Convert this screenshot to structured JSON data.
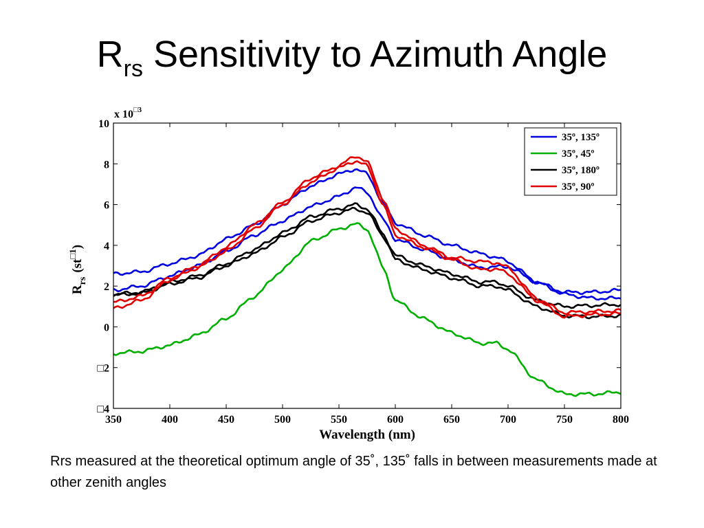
{
  "slide": {
    "title_main": "R",
    "title_sub": "rs",
    "title_rest": " Sensitivity to Azimuth Angle",
    "caption": "Rrs measured at the theoretical optimum angle of 35˚, 135˚ falls in between measurements made at other zenith angles"
  },
  "chart_data": {
    "type": "line",
    "xlabel": "Wavelength (nm)",
    "ylabel_main": "R",
    "ylabel_sub": "rs",
    "ylabel_unit_open": "(st",
    "ylabel_unit_exp": "□1",
    "ylabel_unit_close": ")",
    "multiplier": "x 10",
    "multiplier_exp": "□3",
    "xlim": [
      350,
      800
    ],
    "ylim": [
      -4,
      10
    ],
    "xticks": [
      350,
      400,
      450,
      500,
      550,
      600,
      650,
      700,
      750,
      800
    ],
    "yticks": [
      -4,
      -2,
      0,
      2,
      4,
      6,
      8,
      10
    ],
    "ytick_labels": [
      "□4",
      "□2",
      "0",
      "2",
      "4",
      "6",
      "8",
      "10"
    ],
    "legend_position": "top-right",
    "grid": false,
    "x": [
      350,
      375,
      400,
      425,
      450,
      475,
      500,
      525,
      550,
      565,
      575,
      590,
      600,
      625,
      650,
      675,
      690,
      700,
      725,
      750,
      775,
      800
    ],
    "series": [
      {
        "name": "35º, 135º",
        "color": "#0000e0",
        "values": [
          2.6,
          2.7,
          3.1,
          3.5,
          4.3,
          5.0,
          6.0,
          6.9,
          7.5,
          7.75,
          7.5,
          6.0,
          5.1,
          4.5,
          4.0,
          3.6,
          3.4,
          3.2,
          2.2,
          1.7,
          1.7,
          1.8
        ]
      },
      {
        "name": "35º, 135º",
        "color": "#0000e0",
        "values": [
          1.8,
          2.0,
          2.5,
          3.0,
          3.7,
          4.5,
          5.2,
          5.9,
          6.4,
          6.85,
          6.6,
          5.2,
          4.3,
          3.8,
          3.3,
          2.9,
          2.95,
          2.95,
          2.2,
          1.6,
          1.4,
          1.4
        ]
      },
      {
        "name": "35º, 45º",
        "color": "#00b000",
        "values": [
          -1.3,
          -1.2,
          -0.9,
          -0.4,
          0.4,
          1.5,
          2.8,
          4.2,
          4.8,
          5.05,
          4.8,
          2.8,
          1.3,
          0.4,
          -0.3,
          -0.8,
          -0.8,
          -1.1,
          -2.6,
          -3.3,
          -3.3,
          -3.2
        ]
      },
      {
        "name": "35º, 180º",
        "color": "#000000",
        "values": [
          1.6,
          1.7,
          2.2,
          2.5,
          3.1,
          3.8,
          4.6,
          5.4,
          5.8,
          6.0,
          5.8,
          4.5,
          3.5,
          3.0,
          2.6,
          2.2,
          2.2,
          2.0,
          1.3,
          1.0,
          1.05,
          1.1
        ]
      },
      {
        "name": "35º, 180º",
        "color": "#000000",
        "values": [
          1.55,
          1.65,
          2.1,
          2.4,
          3.0,
          3.6,
          4.4,
          5.2,
          5.6,
          5.8,
          5.6,
          4.4,
          3.3,
          2.8,
          2.4,
          2.0,
          2.0,
          1.8,
          1.0,
          0.55,
          0.5,
          0.55
        ]
      },
      {
        "name": "35º, 90º",
        "color": "#e00000",
        "values": [
          1.2,
          1.5,
          2.4,
          3.0,
          3.9,
          5.0,
          6.1,
          7.3,
          7.9,
          8.4,
          8.1,
          6.2,
          4.8,
          4.0,
          3.4,
          3.2,
          3.15,
          2.9,
          1.4,
          0.7,
          0.75,
          0.8
        ]
      },
      {
        "name": "35º, 90º",
        "color": "#e00000",
        "values": [
          0.9,
          1.3,
          2.3,
          2.9,
          3.7,
          4.8,
          6.0,
          7.1,
          7.8,
          8.15,
          7.9,
          5.9,
          4.5,
          3.9,
          3.3,
          2.8,
          2.85,
          2.6,
          1.3,
          0.5,
          0.6,
          0.65
        ]
      }
    ],
    "legend": [
      {
        "label": "35º, 135º",
        "color": "#0000e0"
      },
      {
        "label": "35º, 45º",
        "color": "#00b000"
      },
      {
        "label": "35º, 180º",
        "color": "#000000"
      },
      {
        "label": "35º, 90º",
        "color": "#e00000"
      }
    ]
  }
}
